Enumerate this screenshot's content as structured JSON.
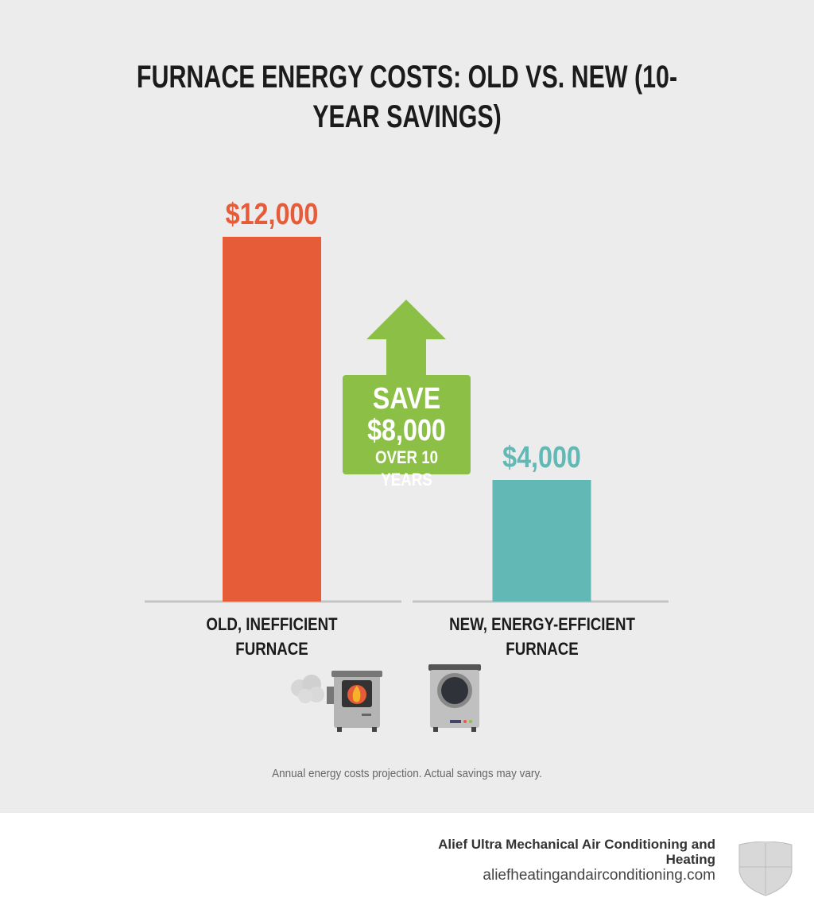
{
  "chart_data": {
    "type": "bar",
    "title": "FURNACE ENERGY COSTS: OLD VS. NEW (10-YEAR SAVINGS)",
    "categories": [
      "OLD, INEFFICIENT FURNACE",
      "NEW, ENERGY-EFFICIENT FURNACE"
    ],
    "values": [
      12000,
      4000
    ],
    "value_labels": [
      "$12,000",
      "$4,000"
    ],
    "colors": [
      "#e65c38",
      "#62b8b5"
    ],
    "annotation": [
      "SAVE",
      "$8,000",
      "OVER 10 YEARS"
    ],
    "note": "Annual energy costs projection. Actual savings may vary."
  },
  "footer": {
    "company": "Alief Ultra Mechanical Air Conditioning and Heating",
    "url": "aliefheatingandairconditioning.com"
  }
}
